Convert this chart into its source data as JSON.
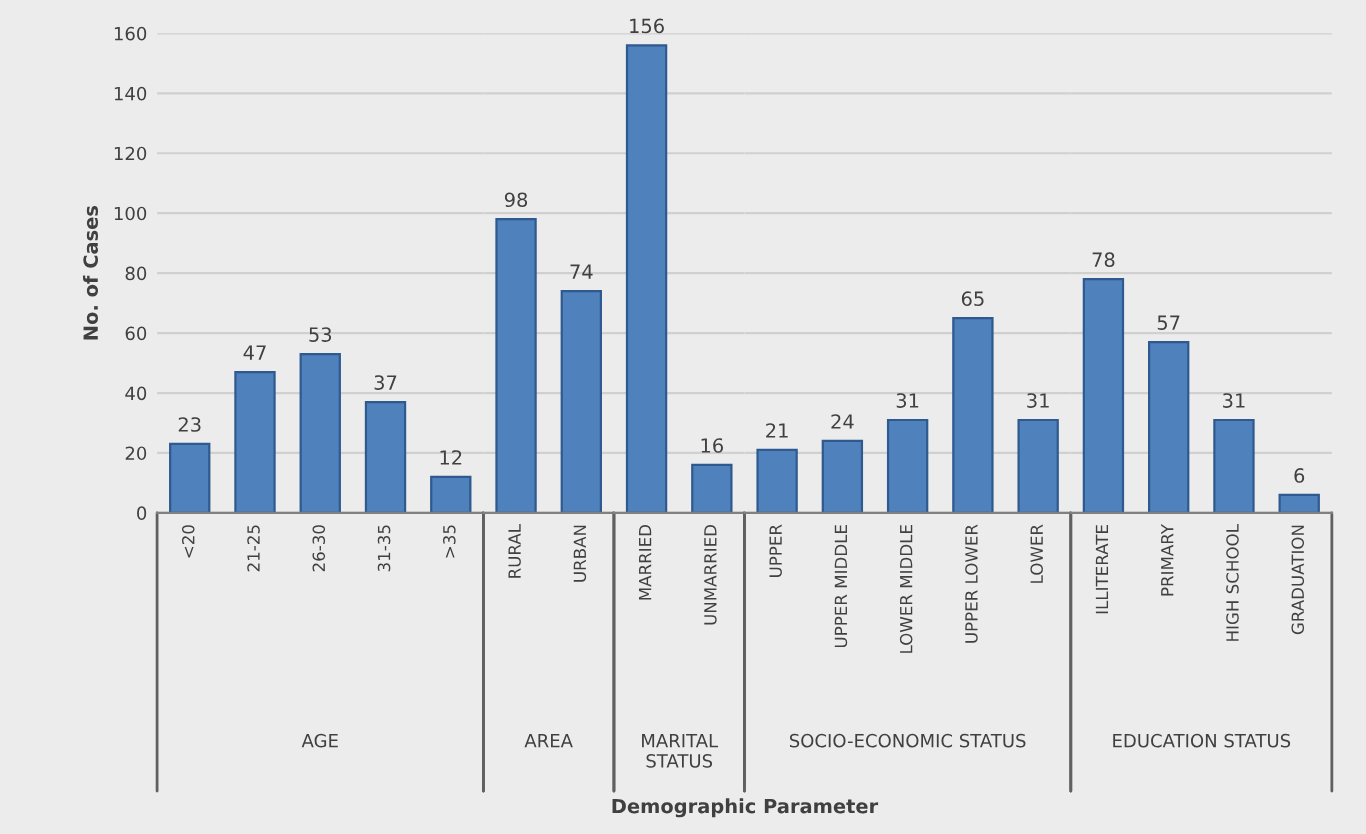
{
  "chart_data": [
    {
      "type": "bar",
      "xlabel": "AGE",
      "ylabel": "No. of Cases",
      "categories": [
        "<20",
        "21-25",
        "26-30",
        "31-35",
        ">35"
      ],
      "values": [
        23,
        47,
        53,
        37,
        12
      ],
      "color": "#4f81bd",
      "ylim": [
        0,
        160
      ],
      "yticks": [
        0,
        20,
        40,
        60,
        80,
        100,
        120,
        140,
        160
      ],
      "grid": "y",
      "data_labels": true
    },
    {
      "type": "bar",
      "xlabel": "AREA",
      "categories": [
        "RURAL",
        "URBAN"
      ],
      "values": [
        98,
        74
      ],
      "color": "#4f81bd",
      "ylim": [
        0,
        160
      ],
      "grid": "y",
      "data_labels": true,
      "tick_labels": "x"
    },
    {
      "type": "bar",
      "xlabel": "MARITAL\nSTATUS",
      "categories": [
        "MARRIED",
        "UNMARRIED"
      ],
      "values": [
        156,
        16
      ],
      "color": "#4f81bd",
      "ylim": [
        0,
        160
      ],
      "grid": "y",
      "data_labels": true,
      "tick_labels": "x"
    },
    {
      "type": "bar",
      "xlabel": "SOCIO-ECONOMIC STATUS",
      "categories": [
        "UPPER",
        "UPPER MIDDLE",
        "LOWER MIDDLE",
        "UPPER LOWER",
        "LOWER"
      ],
      "values": [
        21,
        24,
        31,
        65,
        31
      ],
      "color": "#4f81bd",
      "ylim": [
        0,
        160
      ],
      "grid": "y",
      "data_labels": true,
      "tick_labels": "x"
    },
    {
      "type": "bar",
      "xlabel": "EDUCATION STATUS",
      "categories": [
        "ILLITERATE",
        "PRIMARY",
        "HIGH SCHOOL",
        "GRADUATION"
      ],
      "values": [
        78,
        57,
        31,
        6
      ],
      "color": "#4f81bd",
      "ylim": [
        0,
        160
      ],
      "grid": "y",
      "data_labels": true,
      "tick_labels": "x",
      "annotations": [
        "Demographic Parameter"
      ]
    }
  ]
}
